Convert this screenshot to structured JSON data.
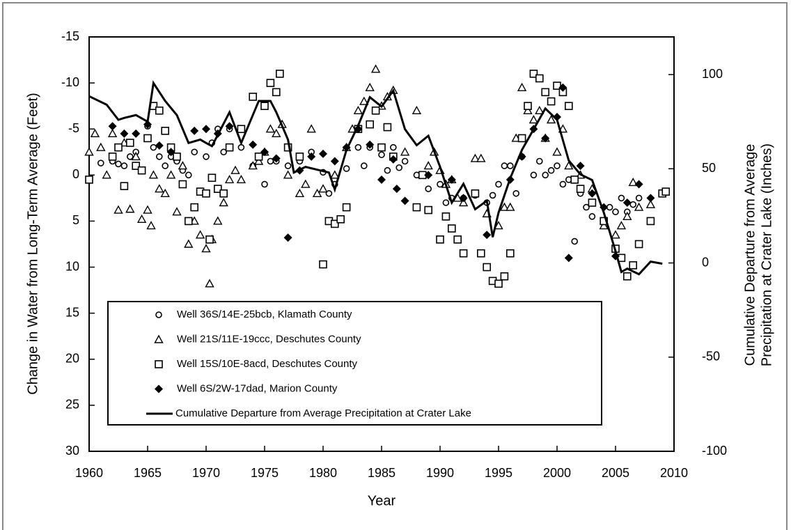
{
  "chart_data": {
    "type": "scatter",
    "xlabel": "Year",
    "ylabel": "Change in Water from Long-Term Average (Feet)",
    "y2label": [
      "Cumulative Departure from Average",
      "Precipitation at Crater Lake (Inches)"
    ],
    "xlim": [
      1960,
      2010
    ],
    "xticks": [
      1960,
      1965,
      1970,
      1975,
      1980,
      1985,
      1990,
      1995,
      2000,
      2005,
      2010
    ],
    "ylim": [
      30,
      -15
    ],
    "yticks": [
      -15,
      -10,
      -5,
      0,
      5,
      10,
      15,
      20,
      25,
      30
    ],
    "y2lim": [
      -100,
      120
    ],
    "y2ticks": [
      100,
      50,
      0,
      -50,
      -100
    ],
    "series": [
      {
        "name": "Well 36S/14E-25bcb, Klamath County",
        "marker": "circle",
        "color": "#000000",
        "x": [
          1961,
          1962,
          1962.5,
          1963,
          1963.5,
          1964,
          1964.5,
          1965,
          1965.5,
          1966,
          1966.5,
          1967,
          1967.5,
          1968,
          1968.5,
          1969,
          1970,
          1970.5,
          1971,
          1971.5,
          1972,
          1973,
          1974,
          1975,
          1975.5,
          1976,
          1977,
          1978,
          1979,
          1980,
          1980.5,
          1981,
          1982,
          1983,
          1983.5,
          1984,
          1985,
          1985.5,
          1986,
          1986.5,
          1987,
          1988,
          1989,
          1990,
          1990.5,
          1991,
          1992,
          1993,
          1994,
          1994.5,
          1995,
          1995.5,
          1996,
          1996.5,
          1997,
          1998,
          1998.5,
          1999,
          1999.5,
          2000,
          2000.5,
          2001,
          2001.5,
          2002,
          2002.5,
          2003,
          2004,
          2004.5,
          2005,
          2005.5,
          2006,
          2006.5,
          2007
        ],
        "values": [
          -1.3,
          -1.5,
          -1.2,
          -1,
          -2,
          -2.5,
          -0.5,
          -5.3,
          -3,
          -2,
          -1,
          -2,
          -1.5,
          -0.5,
          0,
          -2.5,
          -2,
          -3.5,
          -5,
          -2.5,
          -5,
          -3,
          -1,
          1,
          -1.5,
          -1.5,
          -1,
          -1.5,
          -2.5,
          -0.3,
          2,
          1,
          -0.7,
          -3,
          -1,
          -3,
          -2.2,
          -0.5,
          -3,
          -0.8,
          -1.5,
          0,
          1.5,
          1,
          3,
          2.5,
          2.5,
          2.2,
          3,
          2.2,
          1,
          -1,
          -1,
          2,
          -2,
          0,
          -1.5,
          0,
          -0.5,
          -1,
          1,
          0.5,
          7.2,
          2,
          3.5,
          4.5,
          5,
          3.5,
          4,
          2.5,
          4,
          3.2,
          2.5
        ]
      },
      {
        "name": "Well 21S/11E-19ccc, Deschutes County",
        "marker": "triangle",
        "color": "#000000",
        "x": [
          1960,
          1960.5,
          1961,
          1961.5,
          1962,
          1962.5,
          1963,
          1963.5,
          1964,
          1964.5,
          1965,
          1965.3,
          1965.5,
          1966,
          1966.5,
          1967,
          1967.5,
          1968,
          1968.5,
          1969,
          1969.5,
          1970,
          1970.3,
          1970.5,
          1971,
          1971.5,
          1972,
          1972.5,
          1973,
          1974,
          1974.5,
          1975,
          1975.5,
          1976,
          1976.5,
          1977,
          1978,
          1978.5,
          1979,
          1979.5,
          1980,
          1981,
          1982,
          1982.5,
          1983,
          1983.5,
          1984,
          1984.5,
          1985,
          1985.5,
          1986,
          1987,
          1988,
          1989,
          1989.5,
          1990,
          1990.5,
          1991,
          1991.5,
          1992,
          1993,
          1993.5,
          1994,
          1995,
          1995.5,
          1996,
          1996.5,
          1997,
          1997.5,
          1998,
          1998.5,
          1999,
          1999.5,
          2000,
          2000.5,
          2001,
          2002,
          2003,
          2004,
          2005,
          2005.5,
          2006,
          2006.5,
          2007,
          2008
        ],
        "values": [
          -2.5,
          -4.5,
          -3,
          0,
          -4.5,
          3.8,
          -3.5,
          3.7,
          -2,
          4.8,
          3.8,
          5.5,
          0,
          1.5,
          2,
          0,
          4,
          -1,
          7.5,
          5,
          6.5,
          8,
          11.8,
          7,
          5,
          3,
          0.5,
          -0.5,
          0.5,
          -1,
          -1.5,
          -2.5,
          -5,
          -4.5,
          -5.5,
          0,
          2,
          1,
          -5,
          2,
          1.5,
          0,
          -3,
          -5,
          -7,
          -8,
          -9.5,
          -11.5,
          -7.5,
          -8.5,
          -9.2,
          -2.5,
          -7,
          -1,
          -2.5,
          -0.5,
          1,
          0.5,
          2.5,
          3,
          -1.8,
          -1.8,
          4.2,
          5.5,
          3.5,
          3.5,
          -4,
          -9.5,
          -7,
          -6,
          -7,
          -4,
          -6,
          -2.5,
          -5,
          -1,
          0,
          1.5,
          5.5,
          6.5,
          5.5,
          4.5,
          0.8,
          3.5,
          3.2
        ]
      },
      {
        "name": "Well 15S/10E-8acd, Deschutes County",
        "marker": "square",
        "color": "#000000",
        "x": [
          1960,
          1962,
          1962.5,
          1963,
          1963.5,
          1964,
          1964.5,
          1965,
          1965.5,
          1966,
          1966.5,
          1967,
          1967.5,
          1968,
          1968.5,
          1969,
          1969.5,
          1970,
          1970.3,
          1970.5,
          1971,
          1971.5,
          1972,
          1973,
          1974,
          1974.5,
          1975,
          1975.5,
          1976,
          1976.3,
          1977,
          1978,
          1980,
          1980.5,
          1981,
          1981.5,
          1982,
          1983,
          1984,
          1984.5,
          1985,
          1985.5,
          1986,
          1988,
          1988.5,
          1989,
          1990,
          1990.5,
          1991,
          1991.5,
          1992,
          1993,
          1993.5,
          1994,
          1994.5,
          1995,
          1995.5,
          1996,
          1997,
          1997.5,
          1998,
          1998.5,
          1999,
          1999.5,
          2000,
          2000.5,
          2001,
          2001.5,
          2002,
          2003,
          2004,
          2005,
          2005.5,
          2006,
          2006.5,
          2007,
          2008,
          2009,
          2009.3
        ],
        "values": [
          0.5,
          -2,
          -3,
          1.2,
          -3.5,
          -1,
          -0.5,
          -4,
          -7.5,
          -7,
          -4.8,
          -3,
          -2,
          1,
          5,
          3.5,
          1.8,
          2,
          7,
          0.3,
          1.5,
          2,
          -3,
          -5,
          -8.5,
          -2,
          -7.5,
          -10,
          -9,
          -11,
          -3,
          -2,
          9.7,
          5,
          5.3,
          4.8,
          3.5,
          -5,
          -5.5,
          -7,
          -3,
          -5.2,
          -2,
          3.5,
          0,
          3.8,
          7,
          4.5,
          5.8,
          7,
          8.5,
          2,
          8.5,
          10,
          11.5,
          11.8,
          11,
          8.5,
          -4,
          -7.5,
          -11,
          -10.5,
          -9,
          -8,
          -9.7,
          -9,
          -7.5,
          0.5,
          1.5,
          3,
          5,
          8,
          9,
          11,
          9.8,
          7.5,
          5,
          2,
          1.8
        ]
      },
      {
        "name": "Well 6S/2W-17dad, Marion County",
        "marker": "diamond",
        "color": "#000000",
        "x": [
          1962,
          1963,
          1964,
          1965,
          1966,
          1967,
          1969,
          1970,
          1971,
          1972,
          1974,
          1975,
          1976,
          1977,
          1978,
          1979,
          1980,
          1981,
          1982,
          1983,
          1984,
          1985,
          1986,
          1986.3,
          1987,
          1989,
          1991,
          1992,
          1994,
          1996,
          1997,
          1998,
          1999,
          2000,
          2000.5,
          2001,
          2002,
          2003,
          2004,
          2005,
          2006,
          2007,
          2008
        ],
        "values": [
          -5.3,
          -4.5,
          -4.5,
          -5.5,
          -3.2,
          -2.5,
          -4.8,
          -5,
          -4.5,
          -5.3,
          -3.3,
          -2.5,
          -1.8,
          6.8,
          -0.5,
          -2,
          -2.3,
          -1.5,
          -3,
          -5,
          -3.3,
          0.5,
          -1.7,
          1.5,
          2.8,
          0,
          0.5,
          2.5,
          6.5,
          0.5,
          -2,
          -5,
          -4,
          -6.3,
          -9.5,
          9,
          -1,
          2,
          3.5,
          8.8,
          3,
          1,
          2.5
        ]
      },
      {
        "name": "Cumulative Departure from Average Precipitation at Crater Lake",
        "type": "line",
        "axis": "y2",
        "color": "#000000",
        "x": [
          1960,
          1961.5,
          1962.5,
          1963,
          1964,
          1965,
          1965.5,
          1966.5,
          1967.5,
          1968.5,
          1969.5,
          1970,
          1970.5,
          1972,
          1973,
          1974.5,
          1975.5,
          1976,
          1977,
          1977.5,
          1978.5,
          1980.5,
          1981,
          1982,
          1983,
          1984,
          1985,
          1986,
          1987,
          1988,
          1989,
          1990,
          1991,
          1992,
          1993,
          1994,
          1994.5,
          1995,
          1996,
          1997,
          1998,
          1999,
          2000,
          2001,
          2002,
          2003,
          2004,
          2005,
          2005.5,
          2006,
          2007,
          2008,
          2009
        ],
        "values": [
          88.5,
          84,
          76,
          77,
          78.5,
          75,
          95.5,
          86,
          78.5,
          63.7,
          65.5,
          63.7,
          62,
          80,
          63.7,
          86,
          86,
          80,
          65.5,
          48,
          51,
          48,
          39,
          60,
          73,
          88,
          83,
          91.5,
          71,
          62.5,
          67.5,
          51,
          32,
          42,
          28.5,
          33,
          13.7,
          26.7,
          45,
          60,
          71,
          82,
          76,
          54.4,
          47,
          44,
          26.7,
          6.3,
          -4.8,
          -3,
          -6,
          0.7,
          -0.4
        ]
      }
    ]
  }
}
